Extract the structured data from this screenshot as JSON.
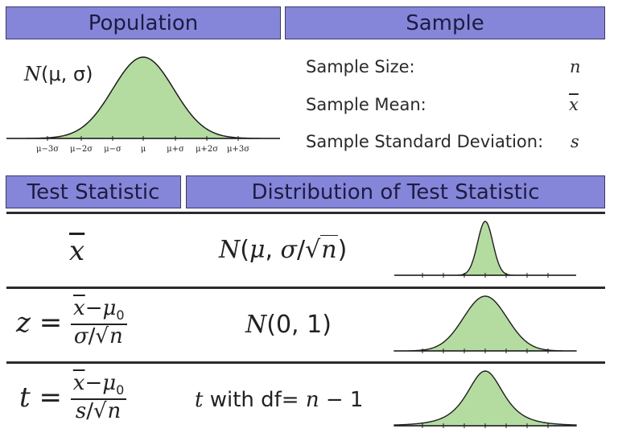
{
  "headers": {
    "population": "Population",
    "sample": "Sample",
    "test_statistic": "Test Statistic",
    "distribution": "Distribution of Test Statistic"
  },
  "population": {
    "formula_name": "N",
    "formula_args": "(μ, σ)",
    "ticks": [
      "μ−3σ",
      "μ−2σ",
      "μ−σ",
      "μ",
      "μ+σ",
      "μ+2σ",
      "μ+3σ"
    ]
  },
  "sample": {
    "rows": [
      {
        "label": "Sample Size:",
        "symbol": "n"
      },
      {
        "label": "Sample Mean:",
        "symbol": "x"
      },
      {
        "label": "Sample Standard Deviation:",
        "symbol": "s"
      }
    ]
  },
  "rows": [
    {
      "statistic": "x",
      "distribution": "N(μ, σ/√n)",
      "curve": "narrow-normal"
    },
    {
      "statistic": "z = (x−μ0)/(σ/√n)",
      "distribution": "N(0, 1)",
      "curve": "standard-normal"
    },
    {
      "statistic": "t = (x−μ0)/(s/√n)",
      "distribution": "t with df= n − 1",
      "curve": "t-heavy-tails"
    }
  ],
  "colors": {
    "header_fill": "#8585d9",
    "curve_fill": "#b5dca0",
    "rule": "#2b2b2b"
  }
}
